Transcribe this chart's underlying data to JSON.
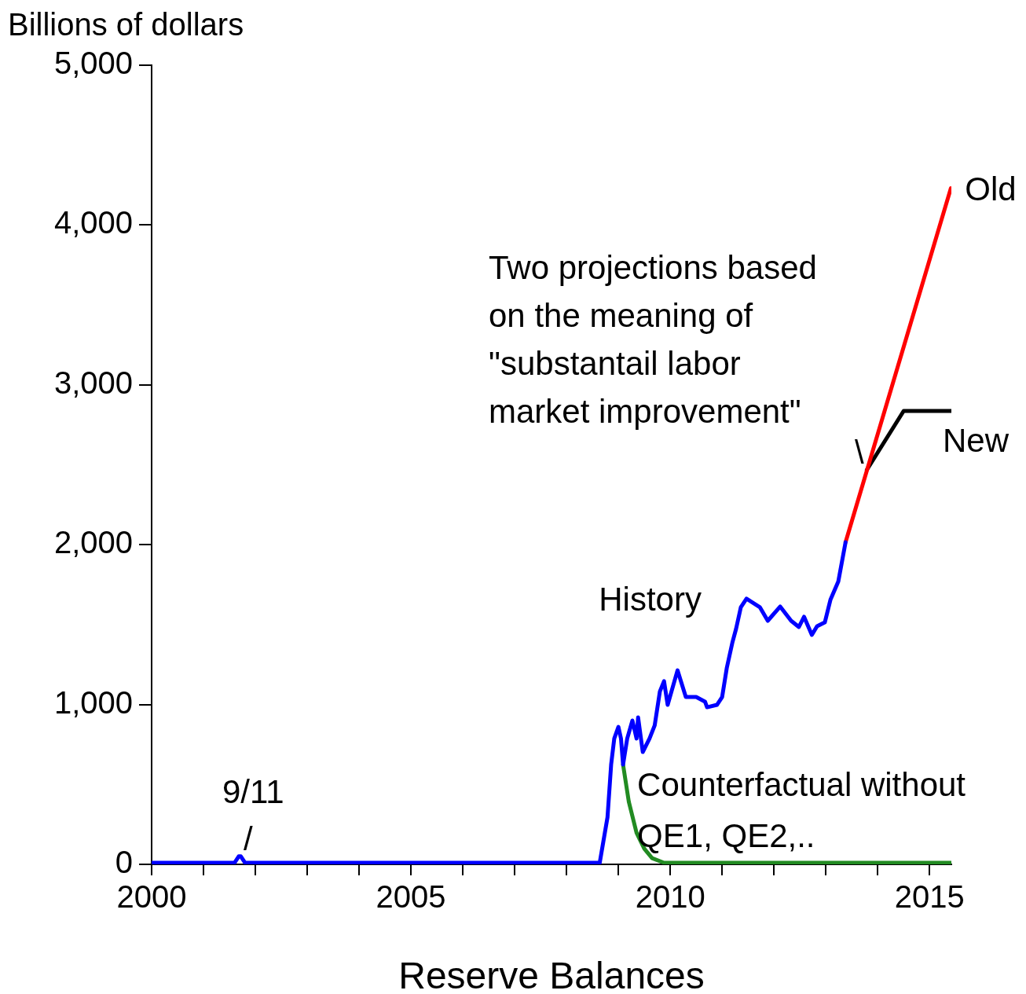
{
  "chart_data": {
    "type": "line",
    "ylabel": "Billions of dollars",
    "xlabel": "Reserve Balances",
    "xlim": [
      2000,
      2015.42
    ],
    "xticks": [
      {
        "value": 2000,
        "label": "2000"
      },
      {
        "value": 2001,
        "label": null
      },
      {
        "value": 2002,
        "label": null
      },
      {
        "value": 2003,
        "label": null
      },
      {
        "value": 2004,
        "label": null
      },
      {
        "value": 2005,
        "label": "2005"
      },
      {
        "value": 2006,
        "label": null
      },
      {
        "value": 2007,
        "label": null
      },
      {
        "value": 2008,
        "label": null
      },
      {
        "value": 2009,
        "label": null
      },
      {
        "value": 2010,
        "label": "2010"
      },
      {
        "value": 2011,
        "label": null
      },
      {
        "value": 2012,
        "label": null
      },
      {
        "value": 2013,
        "label": null
      },
      {
        "value": 2014,
        "label": null
      },
      {
        "value": 2015,
        "label": "2015"
      }
    ],
    "ylim": [
      0,
      5000
    ],
    "yticks": [
      {
        "value": 0,
        "label": "0"
      },
      {
        "value": 1000,
        "label": "1,000"
      },
      {
        "value": 2000,
        "label": "2,000"
      },
      {
        "value": 3000,
        "label": "3,000"
      },
      {
        "value": 4000,
        "label": "4,000"
      },
      {
        "value": 5000,
        "label": "5,000"
      }
    ],
    "grid": false,
    "legend": false,
    "marker": "none",
    "line_style": "solid",
    "series": [
      {
        "name": "History",
        "color": "#0000ff",
        "x": [
          2000,
          2001.6,
          2001.68,
          2001.72,
          2001.8,
          2008.64,
          2008.79,
          2008.86,
          2008.92,
          2009.0,
          2009.05,
          2009.09,
          2009.17,
          2009.27,
          2009.35,
          2009.38,
          2009.47,
          2009.6,
          2009.7,
          2009.8,
          2009.88,
          2009.95,
          2010.14,
          2010.3,
          2010.5,
          2010.67,
          2010.71,
          2010.9,
          2011.0,
          2011.09,
          2011.2,
          2011.27,
          2011.36,
          2011.47,
          2011.73,
          2011.88,
          2012.12,
          2012.33,
          2012.48,
          2012.58,
          2012.73,
          2012.83,
          2012.98,
          2013.09,
          2013.24,
          2013.38
        ],
        "values": [
          10,
          10,
          50,
          50,
          10,
          10,
          295,
          624,
          787,
          860,
          787,
          624,
          787,
          900,
          787,
          919,
          703,
          787,
          870,
          1082,
          1146,
          998,
          1214,
          1047,
          1047,
          1018,
          983,
          998,
          1047,
          1229,
          1391,
          1475,
          1608,
          1662,
          1608,
          1524,
          1613,
          1524,
          1485,
          1549,
          1436,
          1490,
          1514,
          1657,
          1770,
          2016
        ]
      },
      {
        "name": "Old",
        "color": "#ff0000",
        "x": [
          2013.38,
          2015.41
        ],
        "values": [
          2016,
          4230
        ]
      },
      {
        "name": "New",
        "color": "#000000",
        "x": [
          2013.79,
          2014.5,
          2015.42
        ],
        "values": [
          2468,
          2837,
          2837
        ]
      },
      {
        "name": "Counterfactual without QE1, QE2,..",
        "color": "#228b22",
        "x": [
          2009.09,
          2009.2,
          2009.35,
          2009.5,
          2009.65,
          2009.88,
          2015.42
        ],
        "values": [
          624,
          393,
          197,
          98,
          39,
          10,
          10
        ]
      }
    ],
    "annotations": [
      "Two projections based on the meaning of \"substantail labor market improvement\"",
      "9/11",
      "/",
      "\\"
    ]
  }
}
